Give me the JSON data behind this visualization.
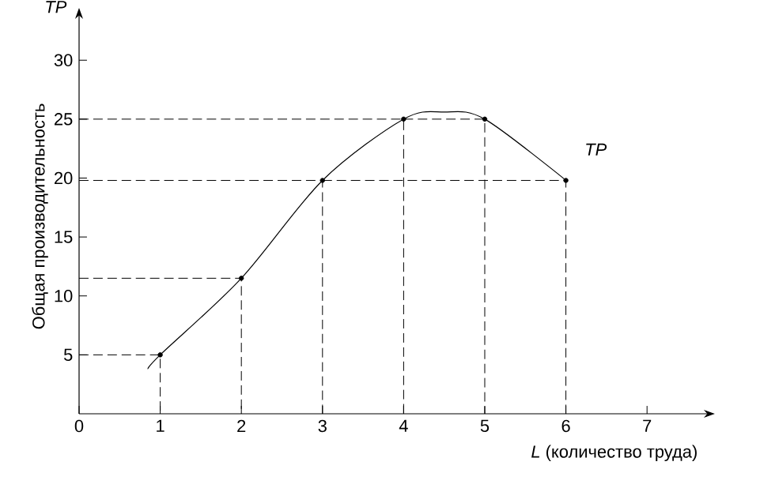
{
  "chart_data": {
    "type": "line",
    "ylabel": "Общая производительность",
    "xlabel": "*L* (количество труда)",
    "annotations": [
      "*TP*"
    ],
    "xlim": [
      0,
      7.7
    ],
    "ylim": [
      0,
      33.5
    ],
    "xticks": [
      0,
      1,
      2,
      3,
      4,
      5,
      6,
      7
    ],
    "yticks": [
      5,
      10,
      15,
      20,
      25,
      30
    ],
    "legend": false,
    "series": [
      {
        "name": "*TP*",
        "color": "#000000",
        "x": [
          0.85,
          1,
          2,
          3,
          4,
          4.5,
          5,
          6
        ],
        "values": [
          3.8,
          5,
          11.5,
          19.8,
          25,
          25.6,
          25,
          19.8
        ]
      },
      {
        "type": "scatter",
        "marker": "circle",
        "color": "#000000",
        "x": [
          1,
          2,
          3,
          4,
          5,
          6
        ],
        "values": [
          5,
          11.5,
          19.8,
          25,
          25,
          19.8
        ]
      },
      {
        "line_style": "dashed",
        "color": "#000000",
        "x": [
          0,
          1,
          1
        ],
        "values": [
          5,
          5,
          0
        ]
      },
      {
        "line_style": "dashed",
        "color": "#000000",
        "x": [
          0,
          2,
          2
        ],
        "values": [
          11.5,
          11.5,
          0
        ]
      },
      {
        "line_style": "dashed",
        "color": "#000000",
        "x": [
          0,
          3,
          3
        ],
        "values": [
          19.8,
          19.8,
          0
        ]
      },
      {
        "line_style": "dashed",
        "color": "#000000",
        "x": [
          3,
          6,
          6
        ],
        "values": [
          19.8,
          19.8,
          0
        ]
      },
      {
        "line_style": "dashed",
        "color": "#000000",
        "x": [
          0,
          4,
          4
        ],
        "values": [
          25,
          25,
          0
        ]
      },
      {
        "line_style": "dashed",
        "color": "#000000",
        "x": [
          4,
          5,
          5
        ],
        "values": [
          25,
          25,
          0
        ]
      }
    ]
  }
}
